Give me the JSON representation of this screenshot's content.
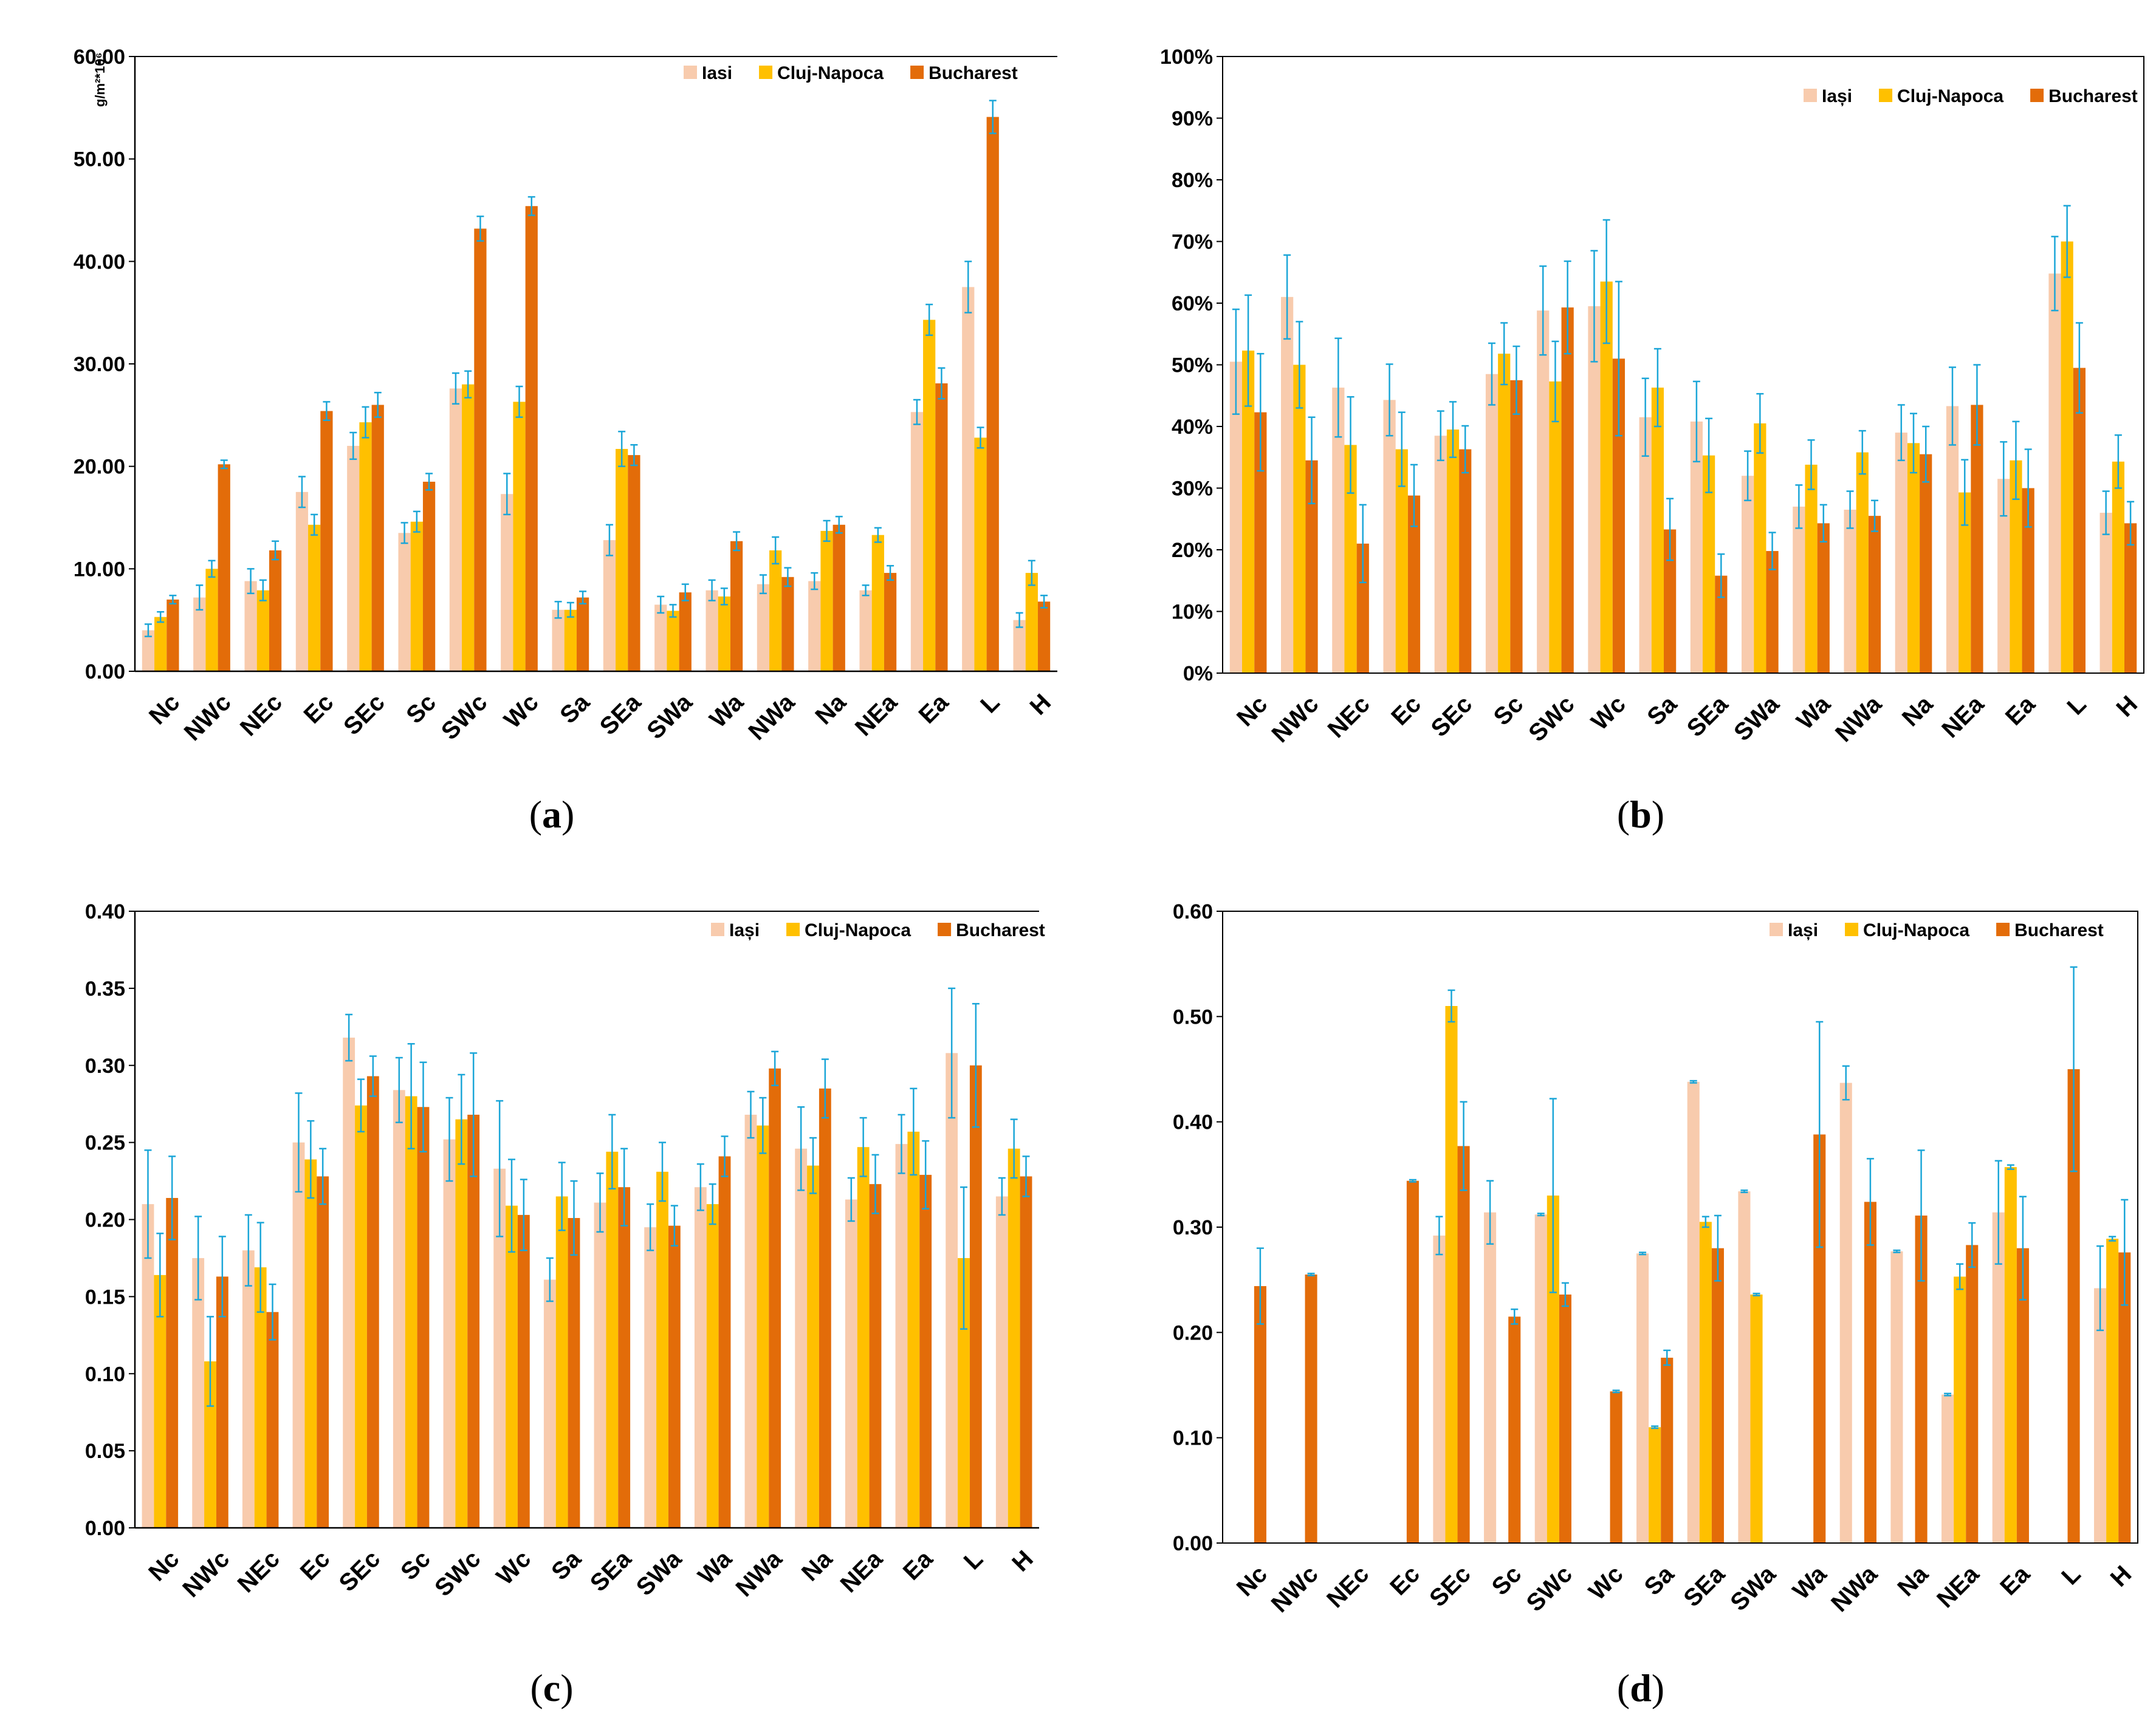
{
  "figure": {
    "panel_labels": [
      {
        "open": "(",
        "letter": "a",
        "close": ")"
      },
      {
        "open": "(",
        "letter": "b",
        "close": ")"
      },
      {
        "open": "(",
        "letter": "c",
        "close": ")"
      },
      {
        "open": "(",
        "letter": "d",
        "close": ")"
      }
    ]
  },
  "colors": {
    "Iasi": "#F8CBAD",
    "Cluj-Napoca": "#FFC000",
    "Bucharest": "#E36C09",
    "error_bar": "#1BA6D8",
    "axis": "#000000",
    "frame": "#000000"
  },
  "chart_data": [
    {
      "panel": "a",
      "type": "bar",
      "categories": [
        "Nc",
        "NWc",
        "NEc",
        "Ec",
        "SEc",
        "Sc",
        "SWc",
        "Wc",
        "Sa",
        "SEa",
        "SWa",
        "Wa",
        "NWa",
        "Na",
        "NEa",
        "Ea",
        "L",
        "H"
      ],
      "ylabel": "g/m²*10⁶",
      "ylim": [
        0,
        60
      ],
      "y_ticks": [
        0,
        10,
        20,
        30,
        40,
        50,
        60
      ],
      "y_tick_labels": [
        "0.00",
        "10.00",
        "20.00",
        "30.00",
        "40.00",
        "50.00",
        "60.00"
      ],
      "legend_position": "top-right",
      "legend": [
        "Iasi",
        "Cluj-Napoca",
        "Bucharest"
      ],
      "series": [
        {
          "name": "Iasi",
          "color_key": "Iasi",
          "values": [
            4.0,
            7.2,
            8.8,
            17.5,
            22.0,
            13.5,
            27.6,
            17.3,
            6.0,
            12.8,
            6.5,
            7.9,
            8.5,
            8.8,
            7.9,
            25.3,
            37.5,
            5.0
          ],
          "errors": [
            0.6,
            1.2,
            1.2,
            1.5,
            1.3,
            1.0,
            1.5,
            2.0,
            0.8,
            1.5,
            0.8,
            1.0,
            0.9,
            0.8,
            0.5,
            1.2,
            2.5,
            0.7
          ]
        },
        {
          "name": "Cluj-Napoca",
          "color_key": "Cluj-Napoca",
          "values": [
            5.3,
            10.0,
            7.9,
            14.3,
            24.3,
            14.6,
            28.0,
            26.3,
            6.0,
            21.7,
            5.9,
            7.3,
            11.8,
            13.7,
            13.3,
            34.3,
            22.8,
            9.6
          ],
          "errors": [
            0.5,
            0.8,
            1.0,
            1.0,
            1.5,
            1.0,
            1.3,
            1.5,
            0.7,
            1.7,
            0.6,
            0.8,
            1.3,
            1.0,
            0.7,
            1.5,
            1.0,
            1.2
          ]
        },
        {
          "name": "Bucharest",
          "color_key": "Bucharest",
          "values": [
            7.0,
            20.2,
            11.8,
            25.4,
            26.0,
            18.5,
            43.2,
            45.4,
            7.2,
            21.1,
            7.7,
            12.7,
            9.2,
            14.3,
            9.6,
            28.1,
            54.1,
            6.8
          ],
          "errors": [
            0.4,
            0.4,
            0.9,
            0.9,
            1.2,
            0.8,
            1.2,
            0.9,
            0.6,
            1.0,
            0.8,
            0.9,
            0.9,
            0.8,
            0.7,
            1.5,
            1.6,
            0.6
          ]
        }
      ]
    },
    {
      "panel": "b",
      "type": "bar",
      "categories": [
        "Nc",
        "NWc",
        "NEc",
        "Ec",
        "SEc",
        "Sc",
        "SWc",
        "Wc",
        "Sa",
        "SEa",
        "SWa",
        "Wa",
        "NWa",
        "Na",
        "NEa",
        "Ea",
        "L",
        "H"
      ],
      "ylabel": "",
      "ylim": [
        0,
        100
      ],
      "y_ticks": [
        0,
        10,
        20,
        30,
        40,
        50,
        60,
        70,
        80,
        90,
        100
      ],
      "y_tick_labels": [
        "0%",
        "10%",
        "20%",
        "30%",
        "40%",
        "50%",
        "60%",
        "70%",
        "80%",
        "90%",
        "100%"
      ],
      "legend_position": "top-right",
      "legend": [
        "Iași",
        "Cluj-Napoca",
        "Bucharest"
      ],
      "series": [
        {
          "name": "Iași",
          "color_key": "Iasi",
          "values": [
            50.5,
            61.0,
            46.3,
            44.3,
            38.5,
            48.5,
            58.8,
            59.5,
            41.5,
            40.8,
            32.0,
            27.0,
            26.5,
            39.0,
            43.3,
            31.5,
            64.8,
            26.0
          ],
          "errors": [
            8.5,
            6.8,
            8.0,
            5.8,
            4.0,
            5.0,
            7.2,
            9.0,
            6.3,
            6.5,
            4.0,
            3.5,
            3.0,
            4.5,
            6.3,
            6.0,
            6.0,
            3.5
          ]
        },
        {
          "name": "Cluj-Napoca",
          "color_key": "Cluj-Napoca",
          "values": [
            52.3,
            50.0,
            37.0,
            36.3,
            39.5,
            51.8,
            47.3,
            63.5,
            46.3,
            35.3,
            40.5,
            33.8,
            35.8,
            37.3,
            29.3,
            34.5,
            70.0,
            34.3
          ],
          "errors": [
            9.0,
            7.0,
            7.8,
            6.0,
            4.5,
            5.0,
            6.5,
            10.0,
            6.3,
            6.0,
            4.8,
            4.0,
            3.5,
            4.8,
            5.3,
            6.3,
            5.8,
            4.3
          ]
        },
        {
          "name": "Bucharest",
          "color_key": "Bucharest",
          "values": [
            42.3,
            34.5,
            21.0,
            28.8,
            36.3,
            47.5,
            59.3,
            51.0,
            23.3,
            15.8,
            19.8,
            24.3,
            25.5,
            35.5,
            43.5,
            30.0,
            49.5,
            24.3
          ],
          "errors": [
            9.5,
            7.0,
            6.3,
            5.0,
            3.8,
            5.5,
            7.5,
            12.5,
            5.0,
            3.5,
            3.0,
            3.0,
            2.5,
            4.5,
            6.5,
            6.3,
            7.3,
            3.5
          ]
        }
      ]
    },
    {
      "panel": "c",
      "type": "bar",
      "categories": [
        "Nc",
        "NWc",
        "NEc",
        "Ec",
        "SEc",
        "Sc",
        "SWc",
        "Wc",
        "Sa",
        "SEa",
        "SWa",
        "Wa",
        "NWa",
        "Na",
        "NEa",
        "Ea",
        "L",
        "H"
      ],
      "ylabel": "",
      "ylim": [
        0,
        0.4
      ],
      "y_ticks": [
        0,
        0.05,
        0.1,
        0.15,
        0.2,
        0.25,
        0.3,
        0.35,
        0.4
      ],
      "y_tick_labels": [
        "0.00",
        "0.05",
        "0.10",
        "0.15",
        "0.20",
        "0.25",
        "0.30",
        "0.35",
        "0.40"
      ],
      "legend_position": "top-right",
      "legend": [
        "Iași",
        "Cluj-Napoca",
        "Bucharest"
      ],
      "series": [
        {
          "name": "Iași",
          "color_key": "Iasi",
          "values": [
            0.21,
            0.175,
            0.18,
            0.25,
            0.318,
            0.284,
            0.252,
            0.233,
            0.161,
            0.211,
            0.195,
            0.221,
            0.268,
            0.246,
            0.213,
            0.249,
            0.308,
            0.215
          ],
          "errors": [
            0.035,
            0.027,
            0.023,
            0.032,
            0.015,
            0.021,
            0.027,
            0.044,
            0.014,
            0.019,
            0.015,
            0.015,
            0.015,
            0.027,
            0.014,
            0.019,
            0.042,
            0.012
          ]
        },
        {
          "name": "Cluj-Napoca",
          "color_key": "Cluj-Napoca",
          "values": [
            0.164,
            0.108,
            0.169,
            0.239,
            0.274,
            0.28,
            0.265,
            0.209,
            0.215,
            0.244,
            0.231,
            0.21,
            0.261,
            0.235,
            0.247,
            0.257,
            0.175,
            0.246
          ],
          "errors": [
            0.027,
            0.029,
            0.029,
            0.025,
            0.017,
            0.034,
            0.029,
            0.03,
            0.022,
            0.024,
            0.019,
            0.013,
            0.018,
            0.018,
            0.019,
            0.028,
            0.046,
            0.019
          ]
        },
        {
          "name": "Bucharest",
          "color_key": "Bucharest",
          "values": [
            0.214,
            0.163,
            0.14,
            0.228,
            0.293,
            0.273,
            0.268,
            0.203,
            0.201,
            0.221,
            0.196,
            0.241,
            0.298,
            0.285,
            0.223,
            0.229,
            0.3,
            0.228
          ],
          "errors": [
            0.027,
            0.026,
            0.018,
            0.018,
            0.013,
            0.029,
            0.04,
            0.023,
            0.024,
            0.025,
            0.013,
            0.013,
            0.011,
            0.019,
            0.019,
            0.022,
            0.04,
            0.013
          ]
        }
      ]
    },
    {
      "panel": "d",
      "type": "bar",
      "categories": [
        "Nc",
        "NWc",
        "NEc",
        "Ec",
        "SEc",
        "Sc",
        "SWc",
        "Wc",
        "Sa",
        "SEa",
        "SWa",
        "Wa",
        "NWa",
        "Na",
        "NEa",
        "Ea",
        "L",
        "H"
      ],
      "ylabel": "",
      "ylim": [
        0,
        0.6
      ],
      "y_ticks": [
        0,
        0.1,
        0.2,
        0.3,
        0.4,
        0.5,
        0.6
      ],
      "y_tick_labels": [
        "0.00",
        "0.10",
        "0.20",
        "0.30",
        "0.40",
        "0.50",
        "0.60"
      ],
      "legend_position": "top-right",
      "legend": [
        "Iași",
        "Cluj-Napoca",
        "Bucharest"
      ],
      "series": [
        {
          "name": "Iași",
          "color_key": "Iasi",
          "values": [
            null,
            null,
            null,
            null,
            0.292,
            0.314,
            0.312,
            null,
            0.275,
            0.438,
            0.334,
            null,
            0.437,
            0.277,
            0.141,
            0.314,
            null,
            0.242
          ],
          "errors": [
            0,
            0,
            0,
            0,
            0.018,
            0.03,
            0.001,
            0,
            0.001,
            0.001,
            0.001,
            0,
            0.016,
            0.001,
            0.001,
            0.049,
            0,
            0.04
          ]
        },
        {
          "name": "Cluj-Napoca",
          "color_key": "Cluj-Napoca",
          "values": [
            null,
            null,
            null,
            null,
            0.51,
            null,
            0.33,
            null,
            0.11,
            0.305,
            0.236,
            null,
            null,
            null,
            0.253,
            0.357,
            null,
            0.289
          ],
          "errors": [
            0,
            0,
            0,
            0,
            0.015,
            0,
            0.092,
            0,
            0.001,
            0.005,
            0.001,
            0,
            0,
            0,
            0.012,
            0.002,
            0,
            0.002
          ]
        },
        {
          "name": "Bucharest",
          "color_key": "Bucharest",
          "values": [
            0.244,
            0.255,
            null,
            0.344,
            0.377,
            0.215,
            0.236,
            0.144,
            0.176,
            0.28,
            null,
            0.388,
            0.324,
            0.311,
            0.283,
            0.28,
            0.45,
            0.276
          ],
          "errors": [
            0.036,
            0.001,
            0,
            0.001,
            0.042,
            0.007,
            0.011,
            0.001,
            0.007,
            0.031,
            0,
            0.107,
            0.041,
            0.062,
            0.021,
            0.049,
            0.097,
            0.05
          ]
        }
      ]
    }
  ]
}
